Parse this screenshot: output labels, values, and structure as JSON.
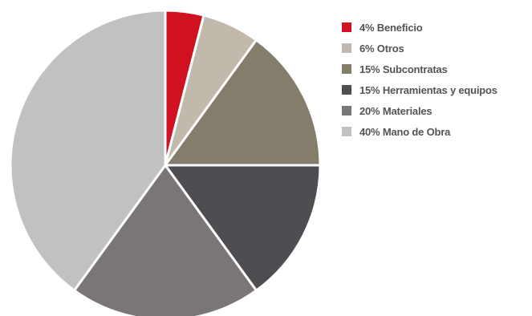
{
  "chart_data": {
    "type": "pie",
    "title": "",
    "start_angle_deg": 0,
    "direction": "clockwise",
    "legend_position": "right",
    "slices": [
      {
        "label": "4% Beneficio",
        "value": 4,
        "color": "#d0111f"
      },
      {
        "label": "6% Otros",
        "value": 6,
        "color": "#c2b9ad"
      },
      {
        "label": "15% Subcontratas",
        "value": 15,
        "color": "#857d6c"
      },
      {
        "label": "15% Herramientas y equipos",
        "value": 15,
        "color": "#4f4d51"
      },
      {
        "label": "20% Materiales",
        "value": 20,
        "color": "#7a7576"
      },
      {
        "label": "40% Mano de Obra",
        "value": 40,
        "color": "#c2c1c1"
      }
    ]
  }
}
